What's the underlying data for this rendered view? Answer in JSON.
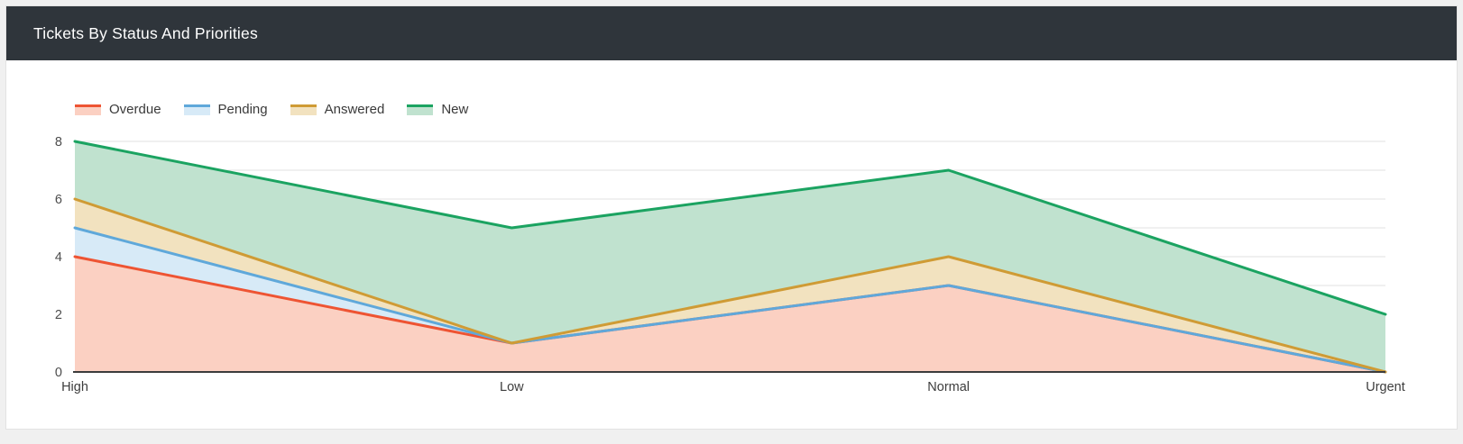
{
  "page": {
    "background": "#f0f0f0"
  },
  "panel": {
    "title": "Tickets By Status And Priorities",
    "header_bg": "#2f353b",
    "header_text_color": "#ffffff"
  },
  "chart_data": {
    "type": "area",
    "title": "Tickets By Status And Priorities",
    "categories": [
      "High",
      "Low",
      "Normal",
      "Urgent"
    ],
    "series": [
      {
        "name": "Overdue",
        "values": [
          4,
          1,
          3,
          0
        ],
        "line_color": "#ee5433",
        "fill_color": "#fbd0c2",
        "fill_mode": "to-zero"
      },
      {
        "name": "Pending",
        "values": [
          5,
          1,
          3,
          0
        ],
        "line_color": "#5fa8da",
        "fill_color": "#d7eaf7",
        "fill_mode": "to-previous"
      },
      {
        "name": "Answered",
        "values": [
          6,
          1,
          4,
          0
        ],
        "line_color": "#cf9b35",
        "fill_color": "#f2e2bf",
        "fill_mode": "to-previous"
      },
      {
        "name": "New",
        "values": [
          8,
          5,
          7,
          2
        ],
        "line_color": "#1ba361",
        "fill_color": "#c0e2cf",
        "fill_mode": "to-previous"
      }
    ],
    "xlabel": "",
    "ylabel": "",
    "ylim": [
      0,
      8
    ],
    "y_ticks": [
      0,
      2,
      4,
      6,
      8
    ],
    "grid_step": 1,
    "grid_on": true,
    "grid_color": "#e2e2e2",
    "axis_line_color": "#3c3c3c",
    "tick_label_color": "#4d4d4d",
    "category_label_color": "#3d3d3d",
    "legend_position": "top-left"
  }
}
